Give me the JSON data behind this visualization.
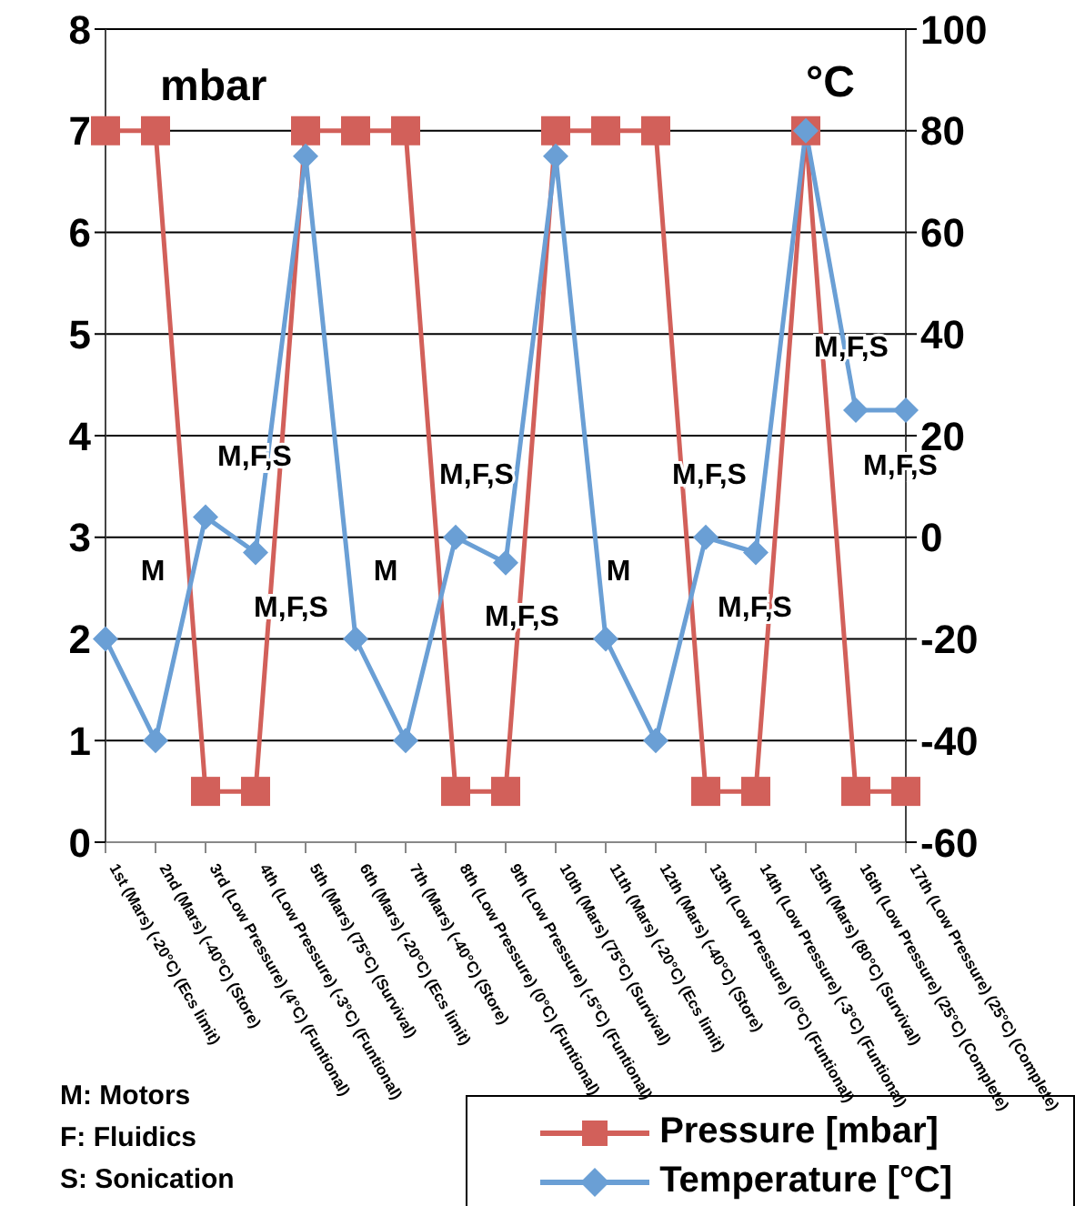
{
  "chart_data": {
    "type": "line",
    "ylabel": "mbar",
    "y2label": "°C",
    "categories": [
      "1st (Mars) (-20°C) (Ecs limit)",
      "2nd (Mars) (-40°C) (Store)",
      "3rd (Low Pressure) (4°C) (Funtional)",
      "4th (Low Pressure) (-3°C) (Funtional)",
      "5th (Mars) (75°C) (Survival)",
      "6th (Mars) (-20°C) (Ecs limit)",
      "7th (Mars) (-40°C) (Store)",
      "8th (Low Pressure) (0°C) (Funtional)",
      "9th (Low Pressure) (-5°C) (Funtional)",
      "10th (Mars) (75°C) (Survival)",
      "11th (Mars) (-20°C) (Ecs limit)",
      "12th (Mars) (-40°C) (Store)",
      "13th (Low Pressure) (0°C) (Funtional)",
      "14th (Low Pressure) (-3°C) (Funtional)",
      "15th (Mars) (80°C) (Survival)",
      "16th (Low Pressure) (25°C) (Complete)",
      "17th (Low Pressure) (25°C) (Complete)"
    ],
    "series": [
      {
        "name": "Pressure [mbar]",
        "color": "#d2605a",
        "marker": "square",
        "values": [
          7,
          7,
          0.5,
          0.5,
          7,
          7,
          7,
          0.5,
          0.5,
          7,
          7,
          7,
          0.5,
          0.5,
          7,
          0.5,
          0.5
        ]
      },
      {
        "name": "Temperature [°C]",
        "color": "#6a9fd5",
        "marker": "diamond",
        "axis": "y2",
        "values": [
          -20,
          -40,
          4,
          -3,
          75,
          -20,
          -40,
          0,
          -5,
          75,
          -20,
          -40,
          0,
          -3,
          80,
          25,
          25
        ]
      }
    ],
    "ylim": [
      0,
      8
    ],
    "yticks": [
      0,
      1,
      2,
      3,
      4,
      5,
      6,
      7,
      8
    ],
    "y2lim": [
      -60,
      100
    ],
    "y2ticks": [
      -60,
      -40,
      -20,
      0,
      20,
      40,
      60,
      80,
      100
    ],
    "grid": "y",
    "legend": "bottom right",
    "annotations": [
      "M",
      "M,F,S",
      "M,F,S",
      "M",
      "M,F,S",
      "M,F,S",
      "M",
      "M,F,S",
      "M,F,S",
      "M,F,S",
      "M,F,S",
      "M: Motors",
      "F: Fluidics",
      "S: Sonication"
    ]
  }
}
